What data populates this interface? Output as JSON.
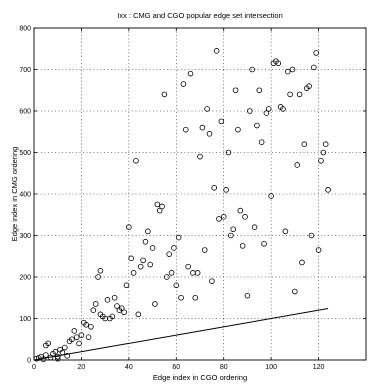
{
  "chart_data": {
    "type": "scatter",
    "title": "Ixx : CMG and CGO popular edge set intersection",
    "xlabel": "Edge index in CGO ordering",
    "ylabel": "Edge index in CMG ordering",
    "xlim": [
      0,
      140
    ],
    "ylim": [
      0,
      800
    ],
    "xticks": [
      0,
      20,
      40,
      60,
      80,
      100,
      120
    ],
    "yticks": [
      0,
      100,
      200,
      300,
      400,
      500,
      600,
      700,
      800
    ],
    "grid": "dotted",
    "series": [
      {
        "kind": "points",
        "marker": "circle-open",
        "color": "#000000",
        "points": [
          [
            1,
            3
          ],
          [
            2,
            5
          ],
          [
            3,
            8
          ],
          [
            4,
            2
          ],
          [
            5,
            12
          ],
          [
            5,
            35
          ],
          [
            6,
            40
          ],
          [
            7,
            6
          ],
          [
            8,
            15
          ],
          [
            9,
            20
          ],
          [
            10,
            8
          ],
          [
            10,
            3
          ],
          [
            11,
            25
          ],
          [
            12,
            18
          ],
          [
            13,
            30
          ],
          [
            14,
            10
          ],
          [
            15,
            45
          ],
          [
            16,
            50
          ],
          [
            17,
            70
          ],
          [
            18,
            55
          ],
          [
            19,
            40
          ],
          [
            20,
            60
          ],
          [
            21,
            90
          ],
          [
            22,
            85
          ],
          [
            23,
            55
          ],
          [
            24,
            80
          ],
          [
            25,
            120
          ],
          [
            26,
            135
          ],
          [
            27,
            200
          ],
          [
            28,
            215
          ],
          [
            28,
            110
          ],
          [
            29,
            105
          ],
          [
            30,
            100
          ],
          [
            31,
            145
          ],
          [
            32,
            100
          ],
          [
            33,
            105
          ],
          [
            34,
            150
          ],
          [
            35,
            130
          ],
          [
            36,
            120
          ],
          [
            37,
            125
          ],
          [
            38,
            115
          ],
          [
            39,
            180
          ],
          [
            40,
            320
          ],
          [
            41,
            245
          ],
          [
            42,
            210
          ],
          [
            43,
            480
          ],
          [
            44,
            110
          ],
          [
            45,
            225
          ],
          [
            46,
            240
          ],
          [
            47,
            285
          ],
          [
            48,
            310
          ],
          [
            49,
            230
          ],
          [
            50,
            270
          ],
          [
            51,
            135
          ],
          [
            52,
            375
          ],
          [
            53,
            360
          ],
          [
            54,
            370
          ],
          [
            55,
            640
          ],
          [
            56,
            200
          ],
          [
            57,
            255
          ],
          [
            58,
            210
          ],
          [
            59,
            270
          ],
          [
            60,
            180
          ],
          [
            61,
            295
          ],
          [
            62,
            150
          ],
          [
            63,
            665
          ],
          [
            64,
            555
          ],
          [
            65,
            225
          ],
          [
            66,
            690
          ],
          [
            67,
            210
          ],
          [
            68,
            150
          ],
          [
            69,
            210
          ],
          [
            70,
            490
          ],
          [
            71,
            560
          ],
          [
            72,
            265
          ],
          [
            73,
            605
          ],
          [
            74,
            545
          ],
          [
            75,
            190
          ],
          [
            76,
            415
          ],
          [
            77,
            745
          ],
          [
            78,
            340
          ],
          [
            79,
            575
          ],
          [
            80,
            345
          ],
          [
            81,
            410
          ],
          [
            82,
            500
          ],
          [
            83,
            300
          ],
          [
            84,
            315
          ],
          [
            85,
            650
          ],
          [
            86,
            555
          ],
          [
            87,
            360
          ],
          [
            88,
            275
          ],
          [
            89,
            345
          ],
          [
            90,
            155
          ],
          [
            91,
            600
          ],
          [
            92,
            700
          ],
          [
            93,
            320
          ],
          [
            94,
            565
          ],
          [
            95,
            650
          ],
          [
            96,
            525
          ],
          [
            97,
            280
          ],
          [
            98,
            595
          ],
          [
            99,
            605
          ],
          [
            100,
            395
          ],
          [
            101,
            715
          ],
          [
            102,
            720
          ],
          [
            103,
            715
          ],
          [
            104,
            610
          ],
          [
            105,
            605
          ],
          [
            106,
            310
          ],
          [
            107,
            695
          ],
          [
            108,
            640
          ],
          [
            109,
            700
          ],
          [
            110,
            165
          ],
          [
            111,
            470
          ],
          [
            112,
            640
          ],
          [
            113,
            235
          ],
          [
            114,
            520
          ],
          [
            115,
            655
          ],
          [
            116,
            660
          ],
          [
            117,
            300
          ],
          [
            118,
            705
          ],
          [
            119,
            740
          ],
          [
            120,
            265
          ],
          [
            121,
            480
          ],
          [
            122,
            500
          ],
          [
            123,
            520
          ],
          [
            124,
            410
          ]
        ]
      },
      {
        "kind": "line",
        "color": "#000000",
        "points": [
          [
            0,
            0
          ],
          [
            124,
            124
          ]
        ]
      }
    ]
  }
}
